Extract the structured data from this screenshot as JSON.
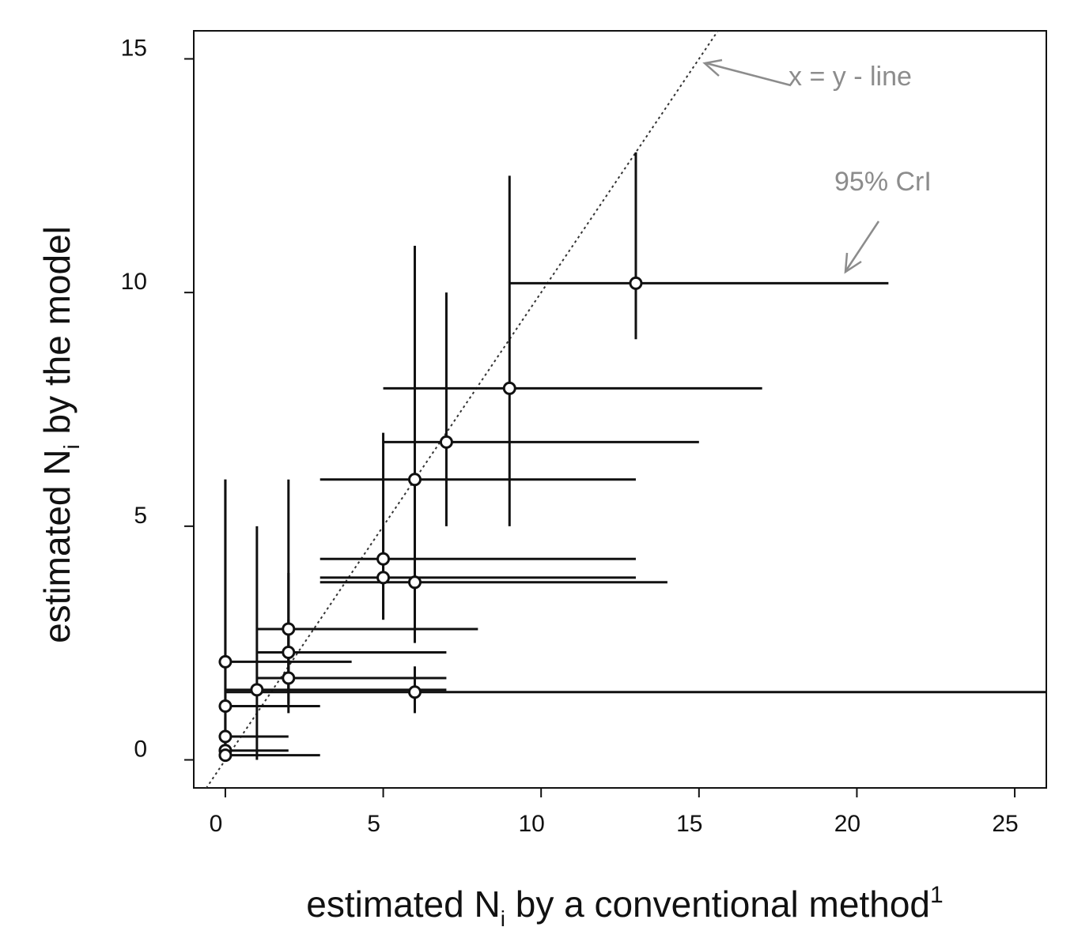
{
  "chart_data": {
    "type": "scatter",
    "xlabel": {
      "main": "estimated N",
      "sub": "i",
      "rest": " by a conventional method",
      "sup": "1"
    },
    "ylabel": {
      "main": "estimated N",
      "sub": "i",
      "rest": " by the model"
    },
    "xlim": [
      -1,
      26
    ],
    "ylim": [
      -0.6,
      15.6
    ],
    "x_ticks": [
      0,
      5,
      10,
      15,
      20,
      25
    ],
    "y_ticks": [
      0,
      5,
      10,
      15
    ],
    "grid": false,
    "reference_line": {
      "label": "x = y - line",
      "slope": 1,
      "intercept": 0,
      "style": "dotted"
    },
    "annotation_ci": "95% CrI",
    "colors": {
      "points": "#ffffff",
      "errorbars": "#111111",
      "refline": "#333333",
      "annotations": "#8c8c8c"
    },
    "points": [
      {
        "x": 0,
        "y": 2.1,
        "xlo": 0,
        "xhi": 4,
        "ylo": 0,
        "yhi": 6
      },
      {
        "x": 0,
        "y": 1.15,
        "xlo": 0,
        "xhi": 3,
        "ylo": 0,
        "yhi": 6
      },
      {
        "x": 0,
        "y": 0.5,
        "xlo": 0,
        "xhi": 2,
        "ylo": 0,
        "yhi": 0.9
      },
      {
        "x": 0,
        "y": 0.2,
        "xlo": 0,
        "xhi": 2,
        "ylo": 0,
        "yhi": 0.5
      },
      {
        "x": 0,
        "y": 0.1,
        "xlo": 0,
        "xhi": 3,
        "ylo": 0,
        "yhi": 0.3
      },
      {
        "x": 1,
        "y": 1.5,
        "xlo": 0,
        "xhi": 7,
        "ylo": 0,
        "yhi": 5
      },
      {
        "x": 2,
        "y": 2.8,
        "xlo": 1,
        "xhi": 8,
        "ylo": 1.5,
        "yhi": 6
      },
      {
        "x": 2,
        "y": 2.3,
        "xlo": 1,
        "xhi": 7,
        "ylo": 1.2,
        "yhi": 4
      },
      {
        "x": 2,
        "y": 1.75,
        "xlo": 1,
        "xhi": 7,
        "ylo": 1,
        "yhi": 3
      },
      {
        "x": 5,
        "y": 4.3,
        "xlo": 3,
        "xhi": 13,
        "ylo": 3,
        "yhi": 7
      },
      {
        "x": 5,
        "y": 3.9,
        "xlo": 3,
        "xhi": 13,
        "ylo": 3,
        "yhi": 5
      },
      {
        "x": 6,
        "y": 3.8,
        "xlo": 3,
        "xhi": 14,
        "ylo": 2.5,
        "yhi": 6
      },
      {
        "x": 6,
        "y": 1.45,
        "xlo": 0,
        "xhi": 26,
        "ylo": 1,
        "yhi": 2
      },
      {
        "x": 6,
        "y": 6,
        "xlo": 3,
        "xhi": 13,
        "ylo": 3,
        "yhi": 11
      },
      {
        "x": 7,
        "y": 6.8,
        "xlo": 5,
        "xhi": 15,
        "ylo": 5,
        "yhi": 10
      },
      {
        "x": 9,
        "y": 7.95,
        "xlo": 5,
        "xhi": 17,
        "ylo": 5,
        "yhi": 12.5
      },
      {
        "x": 13,
        "y": 10.2,
        "xlo": 9,
        "xhi": 21,
        "ylo": 9,
        "yhi": 13
      }
    ]
  }
}
